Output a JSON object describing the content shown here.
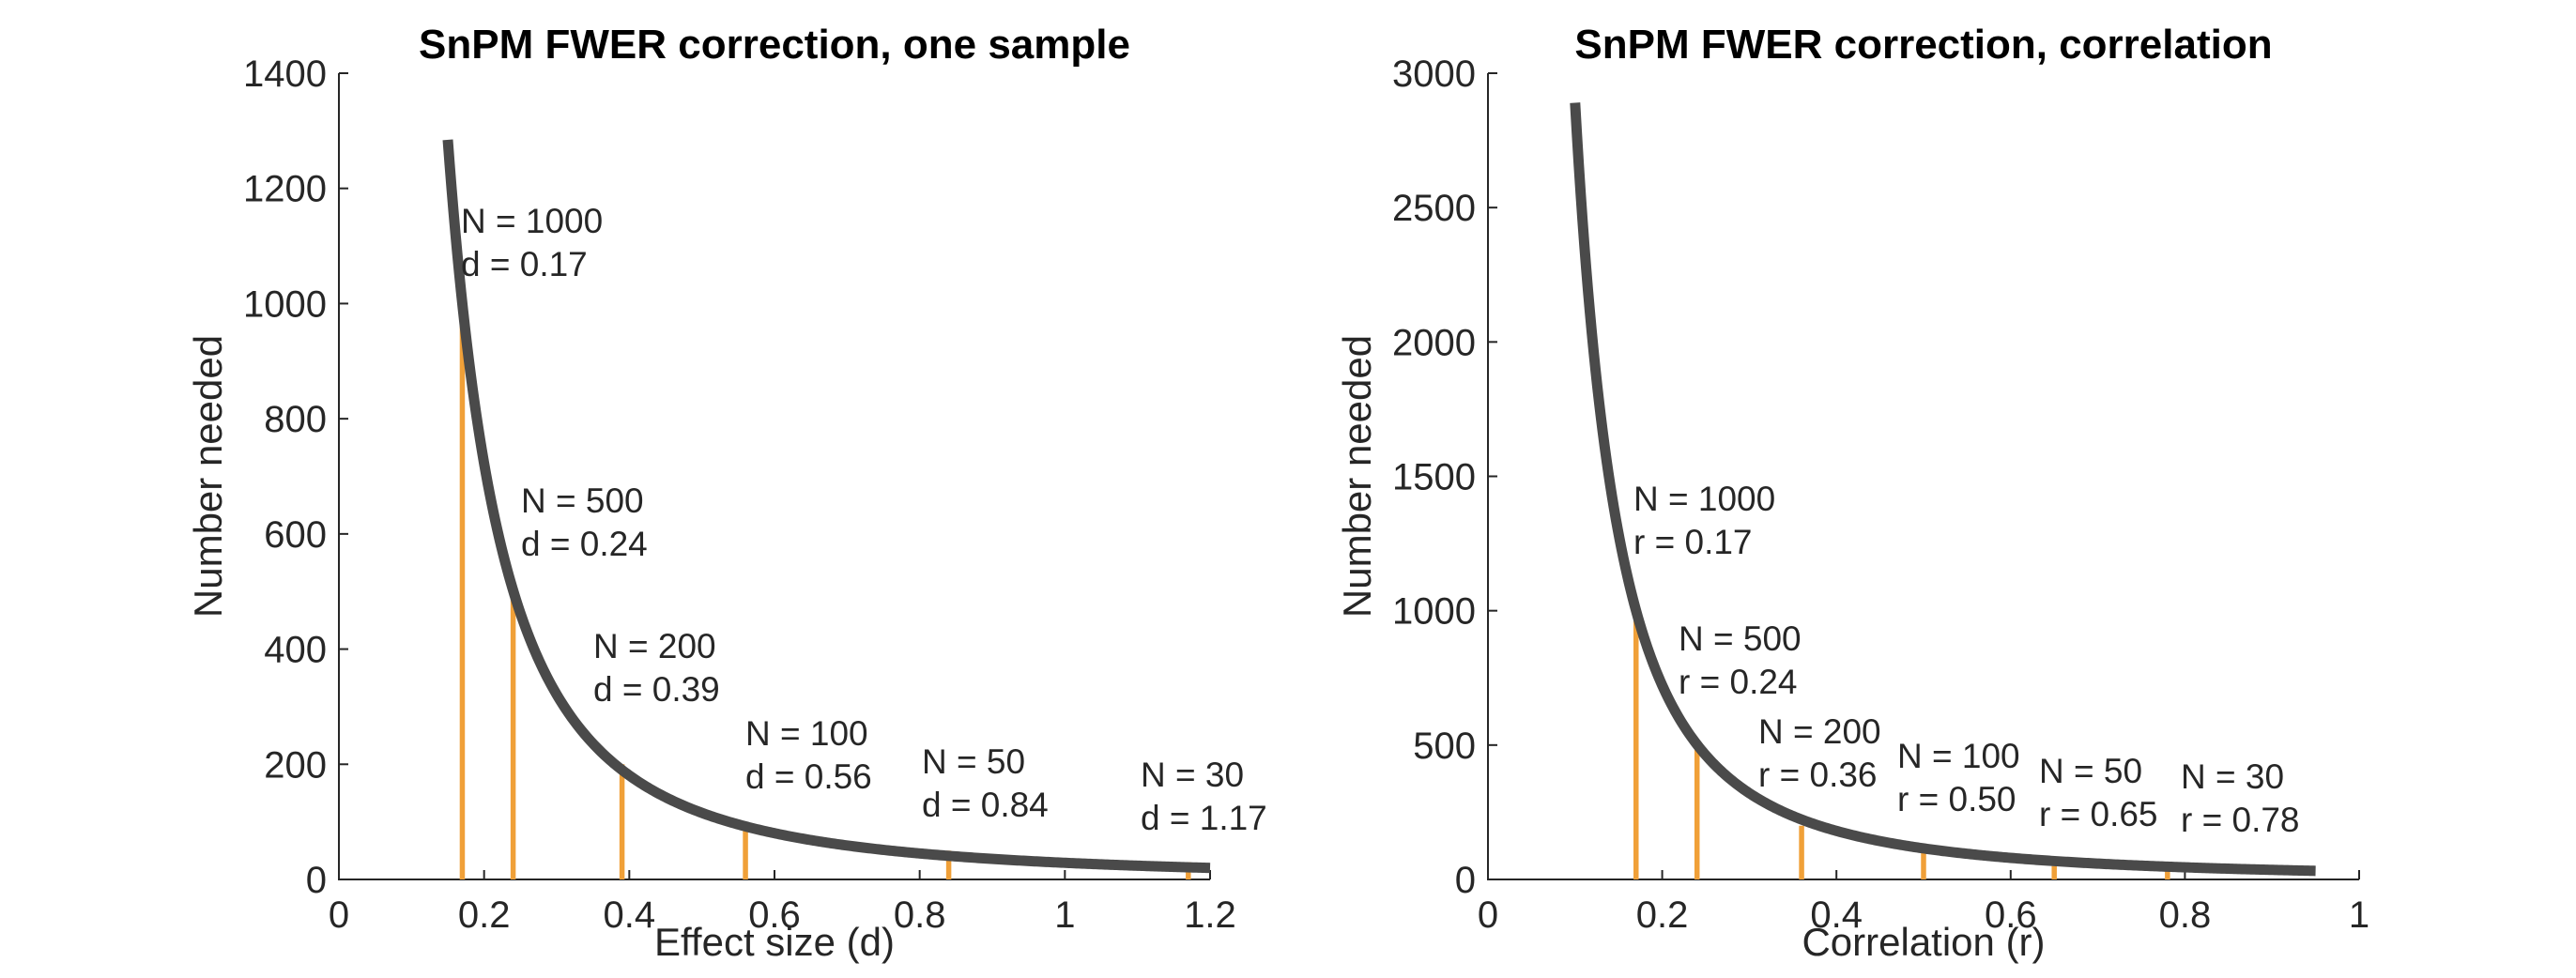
{
  "chart_data": [
    {
      "type": "line",
      "title": "SnPM FWER correction, one sample",
      "xlabel": "Effect size (d)",
      "ylabel": "Number needed",
      "xlim": [
        0,
        1.2
      ],
      "ylim": [
        0,
        1400
      ],
      "xticks": [
        0,
        0.2,
        0.4,
        0.6,
        0.8,
        1,
        1.2
      ],
      "xtick_labels": [
        "0",
        "0.2",
        "0.4",
        "0.6",
        "0.8",
        "1",
        "1.2"
      ],
      "yticks": [
        0,
        200,
        400,
        600,
        800,
        1000,
        1200,
        1400
      ],
      "ytick_labels": [
        "0",
        "200",
        "400",
        "600",
        "800",
        "1000",
        "1200",
        "1400"
      ],
      "curve": {
        "x_start": 0.15,
        "x_end": 1.2,
        "constant": 28.9
      },
      "series": [
        {
          "type": "stem",
          "x": [
            0.17,
            0.24,
            0.39,
            0.56,
            0.84,
            1.17
          ],
          "y": [
            1000,
            500,
            200,
            100,
            50,
            30
          ]
        }
      ],
      "annotations": [
        {
          "lines": [
            "N = 1000",
            "d = 0.17"
          ]
        },
        {
          "lines": [
            "N = 500",
            "d = 0.24"
          ]
        },
        {
          "lines": [
            "N = 200",
            "d = 0.39"
          ]
        },
        {
          "lines": [
            "N = 100",
            "d = 0.56"
          ]
        },
        {
          "lines": [
            "N =  50",
            "d = 0.84"
          ]
        },
        {
          "lines": [
            "N =  30",
            "d = 1.17"
          ]
        }
      ],
      "grid": false,
      "colors": {
        "curve": "#4a4a4a",
        "stems": "#f0a038"
      }
    },
    {
      "type": "line",
      "title": "SnPM FWER correction, correlation",
      "xlabel": "Correlation (r)",
      "ylabel": "Number needed",
      "xlim": [
        0,
        1
      ],
      "ylim": [
        0,
        3000
      ],
      "xticks": [
        0,
        0.2,
        0.4,
        0.6,
        0.8,
        1
      ],
      "xtick_labels": [
        "0",
        "0.2",
        "0.4",
        "0.6",
        "0.8",
        "1"
      ],
      "yticks": [
        0,
        500,
        1000,
        1500,
        2000,
        2500,
        3000
      ],
      "ytick_labels": [
        "0",
        "500",
        "1000",
        "1500",
        "2000",
        "2500",
        "3000"
      ],
      "curve": {
        "x_start": 0.1,
        "x_end": 0.95,
        "constant": 28.9
      },
      "series": [
        {
          "type": "stem",
          "x": [
            0.17,
            0.24,
            0.36,
            0.5,
            0.65,
            0.78
          ],
          "y": [
            1000,
            500,
            200,
            100,
            50,
            30
          ]
        }
      ],
      "annotations": [
        {
          "lines": [
            "N = 1000",
            "r = 0.17"
          ]
        },
        {
          "lines": [
            "N = 500",
            "r = 0.24"
          ]
        },
        {
          "lines": [
            "N = 200",
            "r = 0.36"
          ]
        },
        {
          "lines": [
            "N = 100",
            "r = 0.50"
          ]
        },
        {
          "lines": [
            "N =  50",
            "r = 0.65"
          ]
        },
        {
          "lines": [
            "N =  30",
            "r = 0.78"
          ]
        }
      ],
      "grid": false,
      "colors": {
        "curve": "#4a4a4a",
        "stems": "#f0a038"
      }
    }
  ]
}
